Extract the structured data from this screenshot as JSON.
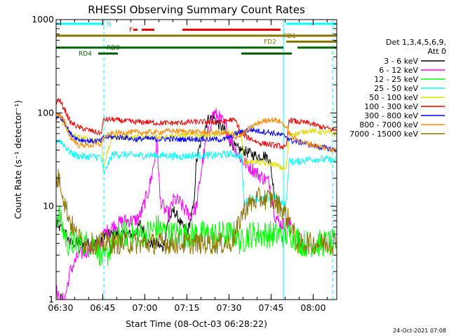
{
  "chart_data": {
    "type": "line",
    "title": "RHESSI Observing Summary Count Rates",
    "xlabel": "Start Time (08-Oct-03 06:28:22)",
    "ylabel": "Count Rate (s⁻¹ detector⁻¹)",
    "footer": "24-Oct-2021 07:08",
    "x_unit": "minutes since 06:28:22",
    "xlim": [
      0,
      100
    ],
    "ylim": [
      1,
      1000
    ],
    "yscale": "log",
    "x_ticks": [
      {
        "t": 1.6,
        "label": "06:30"
      },
      {
        "t": 16.6,
        "label": "06:45"
      },
      {
        "t": 31.6,
        "label": "07:00"
      },
      {
        "t": 46.6,
        "label": "07:15"
      },
      {
        "t": 61.6,
        "label": "07:30"
      },
      {
        "t": 76.6,
        "label": "07:45"
      },
      {
        "t": 91.6,
        "label": "08:00"
      }
    ],
    "y_ticks": [
      {
        "v": 1,
        "label": "1"
      },
      {
        "v": 10,
        "label": "10"
      },
      {
        "v": 100,
        "label": "100"
      },
      {
        "v": 1000,
        "label": "1000"
      }
    ],
    "legend": {
      "placement": "right",
      "header": [
        "Det 1,3,4,5,6,9,",
        "Att 0"
      ]
    },
    "series": [
      {
        "name": "3 - 6 keV",
        "color": "#000000",
        "x": [
          0,
          1,
          3,
          5,
          8,
          16,
          17,
          20,
          24,
          28,
          30,
          33,
          36,
          38,
          40,
          42,
          44,
          45,
          47,
          49,
          50,
          52,
          54,
          56,
          58,
          60,
          62,
          64,
          66,
          68,
          70,
          72,
          74,
          76,
          77,
          78,
          79,
          80,
          82,
          86,
          90,
          95,
          100
        ],
        "y": [
          6.5,
          6,
          5.5,
          4,
          4,
          4,
          5,
          5,
          5,
          5,
          6.5,
          4,
          4,
          3.5,
          7,
          9,
          7,
          6,
          5.5,
          10,
          30,
          55,
          85,
          90,
          75,
          65,
          50,
          42,
          40,
          38,
          36,
          34,
          35,
          33,
          20,
          12,
          11,
          null,
          null,
          null,
          null,
          null,
          null
        ]
      },
      {
        "name": "6 - 12 keV",
        "color": "#ff00ff",
        "x": [
          0,
          1,
          3,
          5,
          8,
          16,
          17,
          20,
          24,
          28,
          30,
          33,
          35,
          36,
          37,
          38,
          40,
          42,
          44,
          46,
          48,
          50,
          52,
          54,
          56,
          58,
          60,
          62,
          64,
          66,
          68,
          70,
          72,
          74,
          76,
          77,
          78,
          79,
          80,
          82,
          84
        ],
        "y": [
          1.3,
          1,
          1,
          2,
          3,
          4,
          5,
          6,
          7,
          7,
          8,
          15,
          30,
          50,
          12,
          10,
          8,
          12,
          11,
          9,
          8,
          10,
          28,
          60,
          100,
          90,
          75,
          55,
          40,
          32,
          28,
          25,
          22,
          20,
          18,
          12,
          8,
          7,
          6.5,
          6.5,
          6.5
        ]
      },
      {
        "name": "12 - 25 keV",
        "color": "#00ff00",
        "x": [
          0,
          1,
          3,
          4,
          6,
          10,
          14,
          16,
          17,
          20,
          24,
          28,
          32,
          36,
          40,
          44,
          48,
          52,
          56,
          60,
          64,
          66,
          68,
          72,
          76,
          80,
          84,
          88,
          92,
          96,
          100
        ],
        "y": [
          8,
          8,
          5,
          4,
          4,
          4,
          4,
          3,
          2.5,
          4,
          5,
          5,
          5,
          6,
          5,
          5,
          5,
          5,
          5,
          5,
          5,
          4,
          5,
          5,
          5,
          5,
          5,
          4,
          4,
          4,
          4
        ]
      },
      {
        "name": "25 - 50 keV",
        "color": "#00ffff",
        "x": [
          0,
          1,
          3,
          5,
          7,
          10,
          14,
          16,
          17,
          20,
          24,
          28,
          32,
          36,
          40,
          44,
          48,
          52,
          56,
          60,
          64,
          66,
          67,
          70,
          74,
          78,
          80,
          82,
          83,
          86,
          90,
          95,
          100
        ],
        "y": [
          50,
          52,
          45,
          38,
          35,
          34,
          34,
          34,
          22,
          36,
          36,
          35,
          35,
          35,
          35,
          34,
          35,
          35,
          35,
          36,
          36,
          34,
          11,
          12,
          12,
          13,
          11,
          11,
          30,
          30,
          32,
          32,
          31
        ]
      },
      {
        "name": "50 - 100 keV",
        "color": "#dddd00",
        "x": [
          0,
          1,
          3,
          5,
          8,
          12,
          16,
          17,
          20,
          24,
          28,
          32,
          36,
          40,
          44,
          48,
          52,
          56,
          60,
          64,
          66,
          67,
          70,
          74,
          78,
          80,
          82,
          83,
          86,
          90,
          95,
          100
        ],
        "y": [
          85,
          90,
          75,
          60,
          55,
          52,
          50,
          28,
          55,
          55,
          55,
          55,
          56,
          56,
          58,
          58,
          58,
          58,
          62,
          60,
          58,
          30,
          30,
          29,
          28,
          26,
          25,
          60,
          60,
          65,
          62,
          60
        ]
      },
      {
        "name": "100 - 300 keV",
        "color": "#ee0000",
        "x": [
          0,
          1,
          3,
          5,
          8,
          12,
          16,
          17,
          20,
          24,
          28,
          32,
          36,
          40,
          44,
          48,
          52,
          56,
          60,
          62,
          64,
          66,
          68,
          70,
          72,
          76,
          78,
          80,
          82,
          83,
          86,
          90,
          95,
          100
        ],
        "y": [
          130,
          140,
          110,
          80,
          70,
          65,
          60,
          85,
          85,
          82,
          80,
          80,
          78,
          78,
          78,
          80,
          80,
          80,
          80,
          85,
          82,
          60,
          55,
          52,
          48,
          46,
          45,
          44,
          42,
          85,
          80,
          78,
          70,
          65
        ]
      },
      {
        "name": "300 - 800 keV",
        "color": "#0000ff",
        "x": [
          0,
          1,
          3,
          5,
          8,
          12,
          16,
          17,
          20,
          24,
          28,
          32,
          36,
          40,
          44,
          48,
          52,
          56,
          60,
          62,
          64,
          66,
          68,
          70,
          72,
          76,
          78,
          80,
          82,
          84,
          88,
          92,
          96,
          100
        ],
        "y": [
          90,
          95,
          80,
          60,
          52,
          50,
          50,
          55,
          55,
          55,
          52,
          53,
          52,
          53,
          52,
          53,
          52,
          52,
          52,
          55,
          60,
          62,
          65,
          66,
          64,
          62,
          60,
          58,
          56,
          50,
          48,
          44,
          42,
          40
        ]
      },
      {
        "name": "800 - 7000 keV",
        "color": "#ff8800",
        "x": [
          0,
          1,
          3,
          5,
          8,
          12,
          16,
          17,
          20,
          24,
          28,
          32,
          36,
          40,
          44,
          48,
          52,
          56,
          60,
          62,
          64,
          66,
          68,
          70,
          72,
          74,
          76,
          78,
          80,
          82,
          84,
          88,
          92,
          96,
          100
        ],
        "y": [
          95,
          100,
          80,
          55,
          45,
          45,
          46,
          55,
          60,
          62,
          62,
          62,
          62,
          64,
          64,
          63,
          62,
          62,
          60,
          58,
          55,
          58,
          65,
          72,
          78,
          82,
          85,
          84,
          80,
          70,
          55,
          48,
          45,
          42,
          40
        ]
      },
      {
        "name": "7000 - 15000 keV",
        "color": "#8b7500",
        "x": [
          0,
          1,
          2,
          3,
          5,
          7,
          10,
          14,
          17,
          20,
          24,
          28,
          32,
          36,
          40,
          44,
          48,
          52,
          56,
          60,
          62,
          64,
          66,
          68,
          70,
          72,
          74,
          76,
          78,
          80,
          82,
          84,
          86,
          88,
          92,
          96,
          100
        ],
        "y": [
          18,
          20,
          16,
          11,
          7,
          5,
          4,
          4,
          4,
          4,
          4,
          4,
          4,
          4,
          4,
          4,
          4,
          4,
          4,
          4,
          4,
          5,
          8,
          10,
          11,
          12,
          12,
          12,
          11,
          10,
          8,
          6,
          4,
          4,
          4,
          4,
          4
        ]
      }
    ],
    "state_bars": [
      {
        "label": "N",
        "color": "#00ffff",
        "y": 1,
        "segments": [
          [
            0,
            17
          ],
          [
            82,
            100
          ]
        ]
      },
      {
        "label": "F",
        "color": "#ee0000",
        "y": 2,
        "segments": [
          [
            27.5,
            29
          ],
          [
            30.5,
            35
          ],
          [
            45,
            80
          ]
        ]
      },
      {
        "label": "FD1",
        "color": "#8b7500",
        "y": 3,
        "segments": [
          [
            0,
            100
          ]
        ]
      },
      {
        "label": "FD2",
        "color": "#8b7500",
        "y": 4,
        "segments": [
          [
            82,
            100
          ]
        ]
      },
      {
        "label": "RD0",
        "color": "#006400",
        "y": 5,
        "segments": [
          [
            0,
            81
          ],
          [
            86,
            100
          ]
        ]
      },
      {
        "label": "RD4",
        "color": "#006400",
        "y": 6,
        "segments": [
          [
            15,
            22
          ],
          [
            66,
            84
          ]
        ]
      }
    ],
    "state_labels": [
      {
        "text": "N",
        "t": 18,
        "row": 1,
        "color": "#00ffff"
      },
      {
        "text": "F",
        "t": 26,
        "row": 2,
        "color": "#ee0000"
      },
      {
        "text": "FD1",
        "t": 81,
        "row": 3,
        "color": "#8b7500"
      },
      {
        "text": "FD2",
        "t": 74,
        "row": 4,
        "color": "#8b7500"
      },
      {
        "text": "RD0",
        "t": 18,
        "row": 5,
        "color": "#006400"
      },
      {
        "text": "RD4",
        "t": 8,
        "row": 6,
        "color": "#006400"
      }
    ],
    "night_lines": [
      {
        "t": 0,
        "style": "solid"
      },
      {
        "t": 17,
        "style": "dashed"
      },
      {
        "t": 81,
        "style": "solid"
      },
      {
        "t": 98.5,
        "style": "dashed"
      }
    ],
    "grid": false
  }
}
